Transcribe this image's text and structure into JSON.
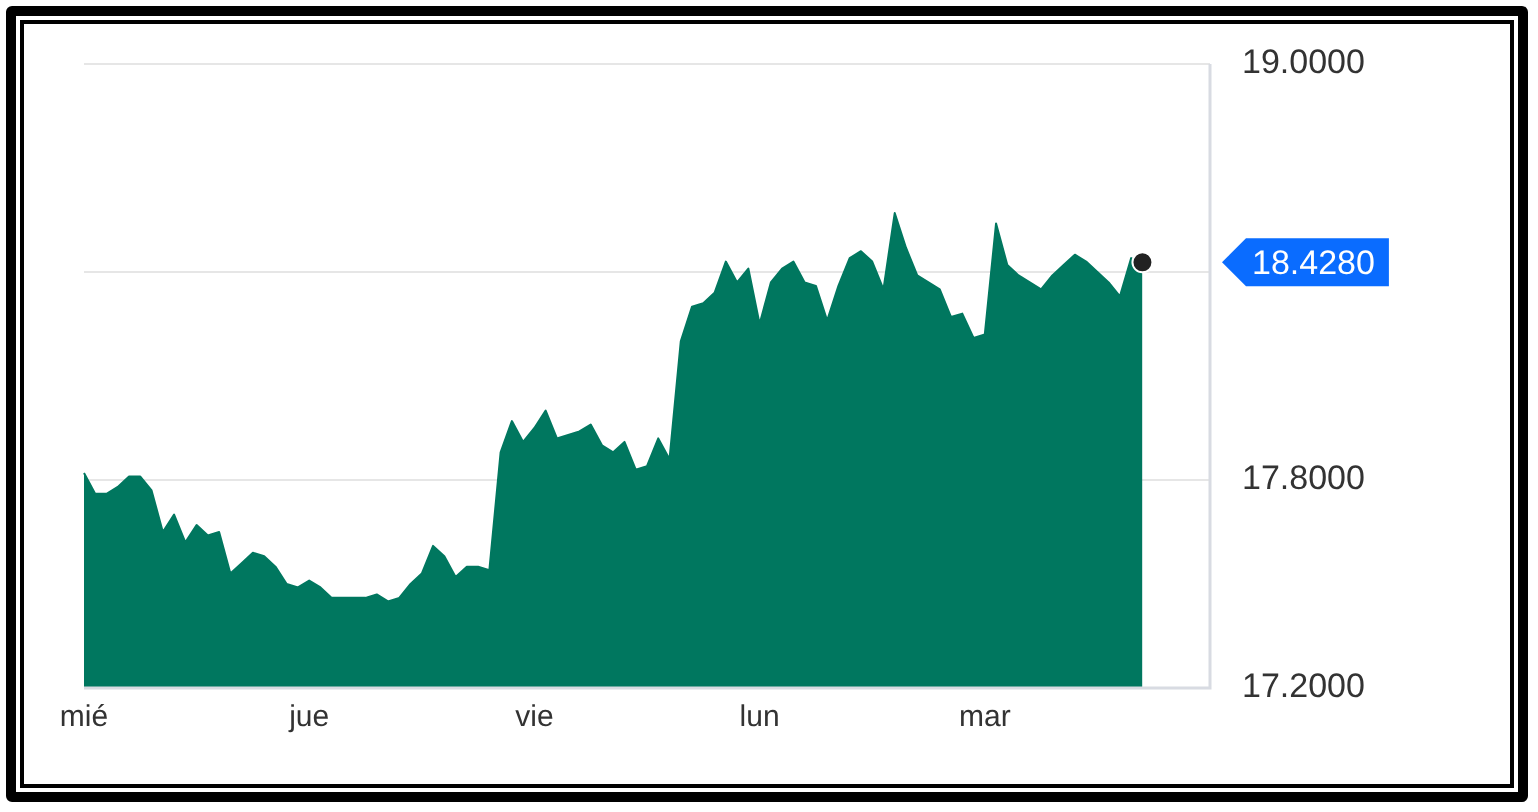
{
  "chart_data": {
    "type": "area",
    "categories": [
      "mié",
      null,
      null,
      null,
      null,
      null,
      null,
      null,
      null,
      null,
      null,
      null,
      null,
      null,
      null,
      null,
      null,
      null,
      null,
      null,
      "jue",
      null,
      null,
      null,
      null,
      null,
      null,
      null,
      null,
      null,
      null,
      null,
      null,
      null,
      null,
      null,
      null,
      null,
      null,
      null,
      "vie",
      null,
      null,
      null,
      null,
      null,
      null,
      null,
      null,
      null,
      null,
      null,
      null,
      null,
      null,
      null,
      null,
      null,
      null,
      null,
      "lun",
      null,
      null,
      null,
      null,
      null,
      null,
      null,
      null,
      null,
      null,
      null,
      null,
      null,
      null,
      null,
      null,
      null,
      null,
      null,
      "mar",
      null,
      null,
      null,
      null,
      null,
      null,
      null,
      null,
      null,
      null,
      null,
      null,
      null,
      null,
      null,
      null,
      null,
      null,
      null,
      null
    ],
    "ylim": [
      17.2,
      19.0
    ],
    "yticks": [
      {
        "value": 17.2,
        "label": "17.2000"
      },
      {
        "value": 17.8,
        "label": "17.8000"
      },
      {
        "value": 18.4,
        "label": null
      },
      {
        "value": 19.0,
        "label": "19.0000"
      }
    ],
    "grid": "y",
    "legend": false,
    "annotations": [
      "18.4280"
    ],
    "series": [
      {
        "color": "#00775f",
        "marker": "none",
        "values": [
          17.82,
          17.76,
          17.76,
          17.78,
          17.81,
          17.81,
          17.77,
          17.65,
          17.7,
          17.62,
          17.67,
          17.64,
          17.65,
          17.53,
          17.56,
          17.59,
          17.58,
          17.55,
          17.5,
          17.49,
          17.51,
          17.49,
          17.46,
          17.46,
          17.46,
          17.46,
          17.47,
          17.45,
          17.46,
          17.5,
          17.53,
          17.61,
          17.58,
          17.52,
          17.55,
          17.55,
          17.54,
          17.88,
          17.97,
          17.91,
          17.95,
          18.0,
          17.92,
          17.93,
          17.94,
          17.96,
          17.9,
          17.88,
          17.91,
          17.83,
          17.84,
          17.92,
          17.86,
          18.2,
          18.3,
          18.31,
          18.34,
          18.43,
          18.37,
          18.41,
          18.25,
          18.37,
          18.41,
          18.43,
          18.37,
          18.36,
          18.26,
          18.36,
          18.44,
          18.46,
          18.43,
          18.35,
          18.57,
          18.47,
          18.39,
          18.37,
          18.35,
          18.27,
          18.28,
          18.21,
          18.22,
          18.54,
          18.42,
          18.39,
          18.37,
          18.35,
          18.39,
          18.42,
          18.45,
          18.43,
          18.4,
          18.37,
          18.33,
          18.44,
          18.428,
          null,
          null,
          null,
          null,
          null,
          null
        ]
      },
      {
        "type": "scatter",
        "color": "#222222",
        "marker": "circle",
        "values": [
          null,
          null,
          null,
          null,
          null,
          null,
          null,
          null,
          null,
          null,
          null,
          null,
          null,
          null,
          null,
          null,
          null,
          null,
          null,
          null,
          null,
          null,
          null,
          null,
          null,
          null,
          null,
          null,
          null,
          null,
          null,
          null,
          null,
          null,
          null,
          null,
          null,
          null,
          null,
          null,
          null,
          null,
          null,
          null,
          null,
          null,
          null,
          null,
          null,
          null,
          null,
          null,
          null,
          null,
          null,
          null,
          null,
          null,
          null,
          null,
          null,
          null,
          null,
          null,
          null,
          null,
          null,
          null,
          null,
          null,
          null,
          null,
          null,
          null,
          null,
          null,
          null,
          null,
          null,
          null,
          null,
          null,
          null,
          null,
          null,
          null,
          null,
          null,
          null,
          null,
          null,
          null,
          null,
          null,
          18.428,
          null,
          null,
          null,
          null,
          null,
          null
        ]
      }
    ]
  }
}
